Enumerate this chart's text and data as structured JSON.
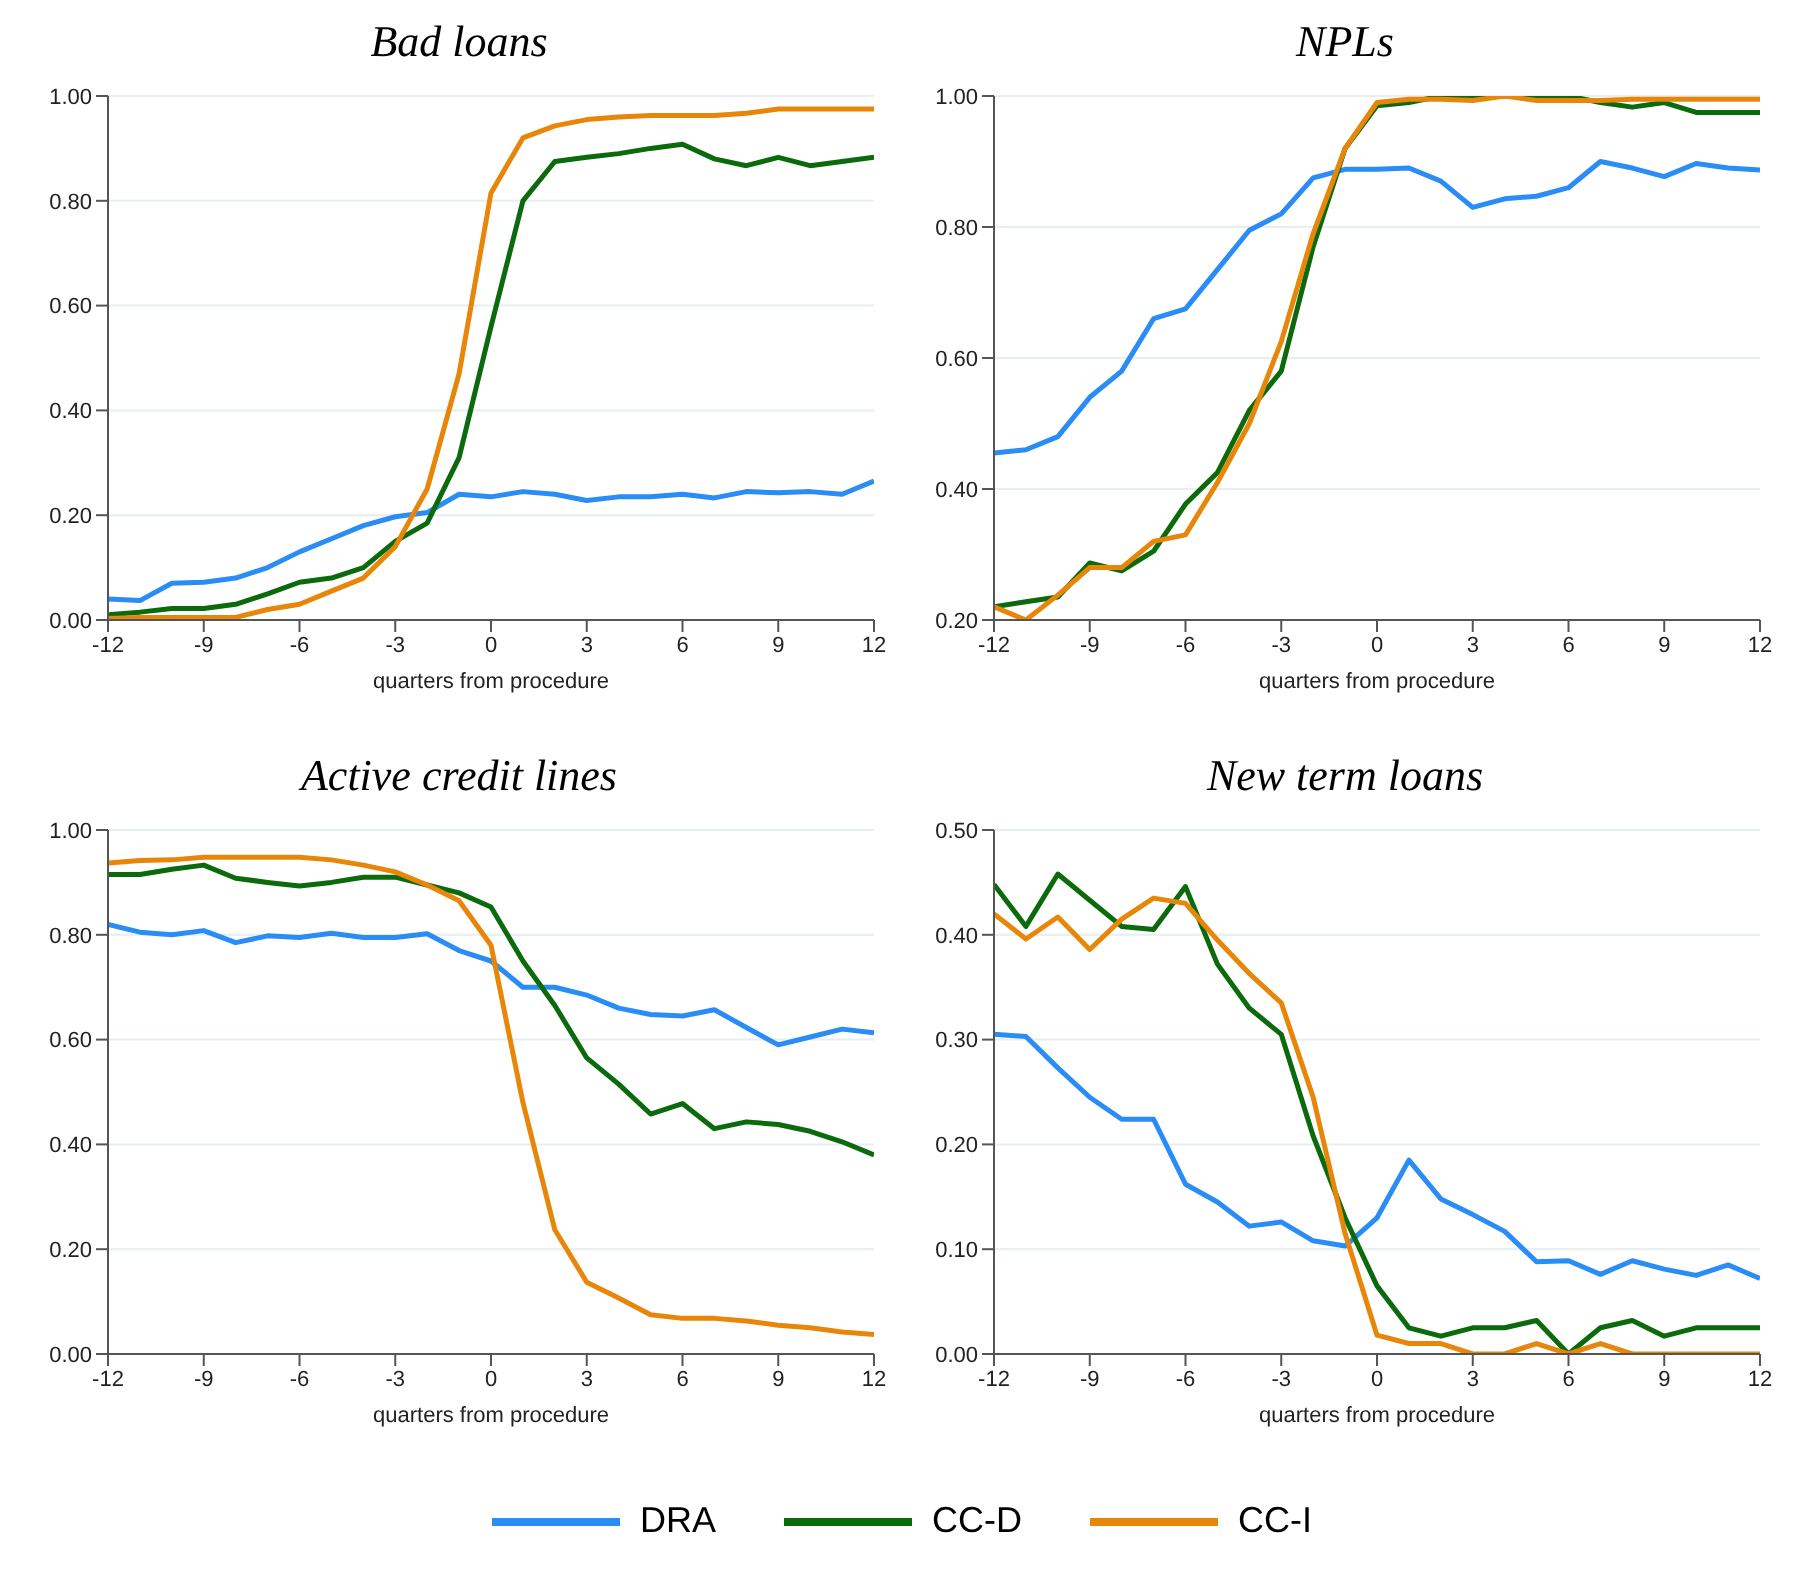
{
  "chart_data": [
    {
      "type": "line",
      "title": "Bad loans",
      "xlabel": "quarters from procedure",
      "x": [
        -12,
        -11,
        -10,
        -9,
        -8,
        -7,
        -6,
        -5,
        -4,
        -3,
        -2,
        -1,
        0,
        1,
        2,
        3,
        4,
        5,
        6,
        7,
        8,
        9,
        10,
        11,
        12
      ],
      "xlim": [
        -12,
        12
      ],
      "xticks": [
        -12,
        -9,
        -6,
        -3,
        0,
        3,
        6,
        9,
        12
      ],
      "ylim": [
        0,
        1
      ],
      "yticks": [
        {
          "value": 0,
          "label": "0.00"
        },
        {
          "value": 0.2,
          "label": "0.20"
        },
        {
          "value": 0.4,
          "label": "0.40"
        },
        {
          "value": 0.6,
          "label": "0.60"
        },
        {
          "value": 0.8,
          "label": "0.80"
        },
        {
          "value": 1,
          "label": "1.00"
        }
      ],
      "grid": "y",
      "marker": "none",
      "line_style": "solid",
      "legend": "bottom",
      "series": [
        {
          "name": "DRA",
          "color": "#2a8cf5",
          "values": [
            0.04,
            0.037,
            0.07,
            0.072,
            0.08,
            0.1,
            0.13,
            0.155,
            0.18,
            0.197,
            0.205,
            0.24,
            0.235,
            0.245,
            0.24,
            0.228,
            0.235,
            0.235,
            0.24,
            0.233,
            0.245,
            0.243,
            0.245,
            0.24,
            0.265
          ]
        },
        {
          "name": "CC-D",
          "color": "#0b6a0b",
          "values": [
            0.01,
            0.015,
            0.022,
            0.022,
            0.03,
            0.05,
            0.072,
            0.08,
            0.1,
            0.15,
            0.185,
            0.31,
            0.56,
            0.8,
            0.875,
            0.883,
            0.89,
            0.9,
            0.908,
            0.88,
            0.867,
            0.883,
            0.867,
            0.875,
            0.883
          ]
        },
        {
          "name": "CC-I",
          "color": "#e8860a",
          "values": [
            0.003,
            0.005,
            0.005,
            0.005,
            0.005,
            0.02,
            0.03,
            0.055,
            0.08,
            0.14,
            0.25,
            0.47,
            0.815,
            0.92,
            0.943,
            0.955,
            0.96,
            0.963,
            0.963,
            0.963,
            0.967,
            0.975,
            0.975,
            0.975,
            0.975
          ]
        }
      ]
    },
    {
      "type": "line",
      "title": "NPLs",
      "xlabel": "quarters from procedure",
      "x": [
        -12,
        -11,
        -10,
        -9,
        -8,
        -7,
        -6,
        -5,
        -4,
        -3,
        -2,
        -1,
        0,
        1,
        2,
        3,
        4,
        5,
        6,
        7,
        8,
        9,
        10,
        11,
        12
      ],
      "xlim": [
        -12,
        12
      ],
      "xticks": [
        -12,
        -9,
        -6,
        -3,
        0,
        3,
        6,
        9,
        12
      ],
      "ylim": [
        0.2,
        1
      ],
      "yticks": [
        {
          "value": 0.2,
          "label": "0.20"
        },
        {
          "value": 0.4,
          "label": "0.40"
        },
        {
          "value": 0.6,
          "label": "0.60"
        },
        {
          "value": 0.8,
          "label": "0.80"
        },
        {
          "value": 1,
          "label": "1.00"
        }
      ],
      "grid": "y",
      "marker": "none",
      "line_style": "solid",
      "series": [
        {
          "color": "#2a8cf5",
          "values": [
            0.455,
            0.46,
            0.48,
            0.54,
            0.58,
            0.66,
            0.675,
            0.735,
            0.795,
            0.82,
            0.875,
            0.888,
            0.888,
            0.89,
            0.87,
            0.83,
            0.843,
            0.847,
            0.86,
            0.9,
            0.89,
            0.877,
            0.897,
            0.89,
            0.887
          ]
        },
        {
          "color": "#0b6a0b",
          "values": [
            0.22,
            0.228,
            0.235,
            0.287,
            0.275,
            0.305,
            0.377,
            0.425,
            0.52,
            0.58,
            0.77,
            0.92,
            0.985,
            0.99,
            1,
            1,
            1,
            1,
            1,
            0.99,
            0.983,
            0.99,
            0.975,
            0.975,
            0.975
          ]
        },
        {
          "color": "#e8860a",
          "values": [
            0.22,
            0.2,
            0.238,
            0.28,
            0.28,
            0.32,
            0.33,
            0.41,
            0.5,
            0.625,
            0.79,
            0.92,
            0.99,
            0.995,
            0.995,
            0.993,
            1,
            0.993,
            0.993,
            0.993,
            0.995,
            0.995,
            0.995,
            0.995,
            0.995
          ]
        }
      ]
    },
    {
      "type": "line",
      "title": "Active credit lines",
      "xlabel": "quarters from procedure",
      "x": [
        -12,
        -11,
        -10,
        -9,
        -8,
        -7,
        -6,
        -5,
        -4,
        -3,
        -2,
        -1,
        0,
        1,
        2,
        3,
        4,
        5,
        6,
        7,
        8,
        9,
        10,
        11,
        12
      ],
      "xlim": [
        -12,
        12
      ],
      "xticks": [
        -12,
        -9,
        -6,
        -3,
        0,
        3,
        6,
        9,
        12
      ],
      "ylim": [
        0,
        1
      ],
      "yticks": [
        {
          "value": 0,
          "label": "0.00"
        },
        {
          "value": 0.2,
          "label": "0.20"
        },
        {
          "value": 0.4,
          "label": "0.40"
        },
        {
          "value": 0.6,
          "label": "0.60"
        },
        {
          "value": 0.8,
          "label": "0.80"
        },
        {
          "value": 1,
          "label": "1.00"
        }
      ],
      "grid": "y",
      "marker": "none",
      "line_style": "solid",
      "series": [
        {
          "color": "#2a8cf5",
          "values": [
            0.82,
            0.805,
            0.8,
            0.808,
            0.785,
            0.798,
            0.795,
            0.803,
            0.795,
            0.795,
            0.802,
            0.77,
            0.75,
            0.7,
            0.7,
            0.685,
            0.66,
            0.648,
            0.645,
            0.657,
            0.623,
            0.59,
            0.605,
            0.62,
            0.613
          ]
        },
        {
          "color": "#0b6a0b",
          "values": [
            0.915,
            0.915,
            0.925,
            0.933,
            0.908,
            0.9,
            0.893,
            0.9,
            0.91,
            0.91,
            0.895,
            0.88,
            0.853,
            0.75,
            0.665,
            0.565,
            0.515,
            0.458,
            0.478,
            0.43,
            0.443,
            0.438,
            0.425,
            0.405,
            0.38
          ]
        },
        {
          "color": "#e8860a",
          "values": [
            0.937,
            0.942,
            0.943,
            0.948,
            0.948,
            0.948,
            0.948,
            0.943,
            0.933,
            0.92,
            0.895,
            0.865,
            0.78,
            0.48,
            0.237,
            0.137,
            0.107,
            0.075,
            0.068,
            0.068,
            0.063,
            0.055,
            0.05,
            0.042,
            0.037
          ]
        }
      ]
    },
    {
      "type": "line",
      "title": "New term loans",
      "xlabel": "quarters from procedure",
      "x": [
        -12,
        -11,
        -10,
        -9,
        -8,
        -7,
        -6,
        -5,
        -4,
        -3,
        -2,
        -1,
        0,
        1,
        2,
        3,
        4,
        5,
        6,
        7,
        8,
        9,
        10,
        11,
        12
      ],
      "xlim": [
        -12,
        12
      ],
      "xticks": [
        -12,
        -9,
        -6,
        -3,
        0,
        3,
        6,
        9,
        12
      ],
      "ylim": [
        0,
        0.5
      ],
      "yticks": [
        {
          "value": 0,
          "label": "0.00"
        },
        {
          "value": 0.1,
          "label": "0.10"
        },
        {
          "value": 0.2,
          "label": "0.20"
        },
        {
          "value": 0.3,
          "label": "0.30"
        },
        {
          "value": 0.4,
          "label": "0.40"
        },
        {
          "value": 0.5,
          "label": "0.50"
        }
      ],
      "grid": "y",
      "marker": "none",
      "line_style": "solid",
      "series": [
        {
          "color": "#2a8cf5",
          "values": [
            0.305,
            0.303,
            0.273,
            0.245,
            0.224,
            0.224,
            0.162,
            0.145,
            0.122,
            0.126,
            0.108,
            0.103,
            0.13,
            0.185,
            0.148,
            0.133,
            0.117,
            0.088,
            0.089,
            0.076,
            0.089,
            0.081,
            0.075,
            0.085,
            0.072
          ]
        },
        {
          "color": "#0b6a0b",
          "values": [
            0.448,
            0.408,
            0.458,
            0.433,
            0.408,
            0.405,
            0.446,
            0.372,
            0.33,
            0.305,
            0.208,
            0.13,
            0.065,
            0.025,
            0.017,
            0.025,
            0.025,
            0.032,
            0,
            0.025,
            0.032,
            0.017,
            0.025,
            0.025,
            0.025
          ]
        },
        {
          "color": "#e8860a",
          "values": [
            0.42,
            0.396,
            0.417,
            0.386,
            0.415,
            0.435,
            0.43,
            0.395,
            0.363,
            0.335,
            0.245,
            0.115,
            0.018,
            0.01,
            0.01,
            0,
            0,
            0.01,
            0,
            0.01,
            0,
            0,
            0,
            0,
            0
          ]
        }
      ]
    }
  ]
}
